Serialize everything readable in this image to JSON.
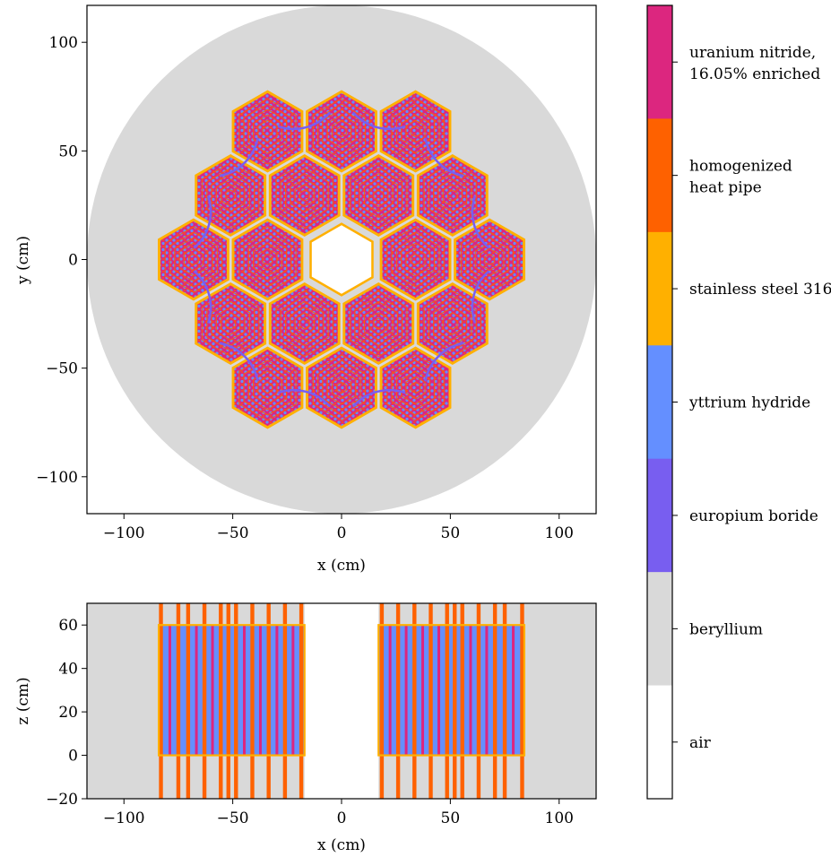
{
  "chart_data": [
    {
      "type": "other",
      "plot": "xy cross-section",
      "xlabel": "x (cm)",
      "ylabel": "y (cm)",
      "xlim": [
        -117,
        117
      ],
      "ylim": [
        -117,
        117
      ],
      "xticks": [
        -100,
        -50,
        0,
        50,
        100
      ],
      "yticks": [
        -100,
        -50,
        0,
        50,
        100
      ],
      "xtick_labels": [
        "−100",
        "−50",
        "0",
        "50",
        "100"
      ],
      "ytick_labels": [
        "−100",
        "−50",
        "0",
        "50",
        "100"
      ],
      "reflector_radius": 117,
      "assembly_flat_to_flat": 31.5,
      "assembly_pitch": 34,
      "assembly_centers": [
        [
          -34,
          59
        ],
        [
          0,
          59
        ],
        [
          34,
          59
        ],
        [
          -51,
          29.5
        ],
        [
          -17,
          29.5
        ],
        [
          17,
          29.5
        ],
        [
          51,
          29.5
        ],
        [
          -68,
          0
        ],
        [
          -34,
          0
        ],
        [
          34,
          0
        ],
        [
          68,
          0
        ],
        [
          -51,
          -29.5
        ],
        [
          -17,
          -29.5
        ],
        [
          17,
          -29.5
        ],
        [
          51,
          -29.5
        ],
        [
          -34,
          -59
        ],
        [
          0,
          -59
        ],
        [
          34,
          -59
        ]
      ],
      "central_air_hex_circumradius": 17,
      "control_drum_count": 12,
      "control_drum_radius": 22,
      "pin_rings_per_assembly": 6
    },
    {
      "type": "other",
      "plot": "xz cross-section",
      "xlabel": "x (cm)",
      "ylabel": "z (cm)",
      "xlim": [
        -117,
        117
      ],
      "ylim": [
        -20,
        70
      ],
      "xticks": [
        -100,
        -50,
        0,
        50,
        100
      ],
      "yticks": [
        -20,
        0,
        20,
        40,
        60
      ],
      "xtick_labels": [
        "−100",
        "−50",
        "0",
        "50",
        "100"
      ],
      "ytick_labels": [
        "−20",
        "0",
        "20",
        "40",
        "60"
      ],
      "active_core_z": [
        0,
        60
      ],
      "core_x_extent": [
        17,
        84
      ],
      "heat_pipe_x_positions": [
        18.5,
        26,
        33.5,
        41,
        48.5,
        52,
        55.5,
        63,
        70.5,
        75,
        83
      ],
      "fuel_x_positions": [
        22.3,
        29.7,
        37.3,
        44.7,
        59.3,
        66.7,
        78.9
      ]
    }
  ],
  "legend": {
    "entries": [
      {
        "line1": "uranium nitride,",
        "line2": "16.05% enriched",
        "color": "#dc267f"
      },
      {
        "line1": "homogenized",
        "line2": "heat pipe",
        "color": "#fe6100"
      },
      {
        "line1": "stainless steel 316",
        "line2": "",
        "color": "#ffb000"
      },
      {
        "line1": "yttrium hydride",
        "line2": "",
        "color": "#648fff"
      },
      {
        "line1": "europium boride",
        "line2": "",
        "color": "#785ef0"
      },
      {
        "line1": "beryllium",
        "line2": "",
        "color": "#d9d9d9"
      },
      {
        "line1": "air",
        "line2": "",
        "color": "#ffffff"
      }
    ]
  }
}
